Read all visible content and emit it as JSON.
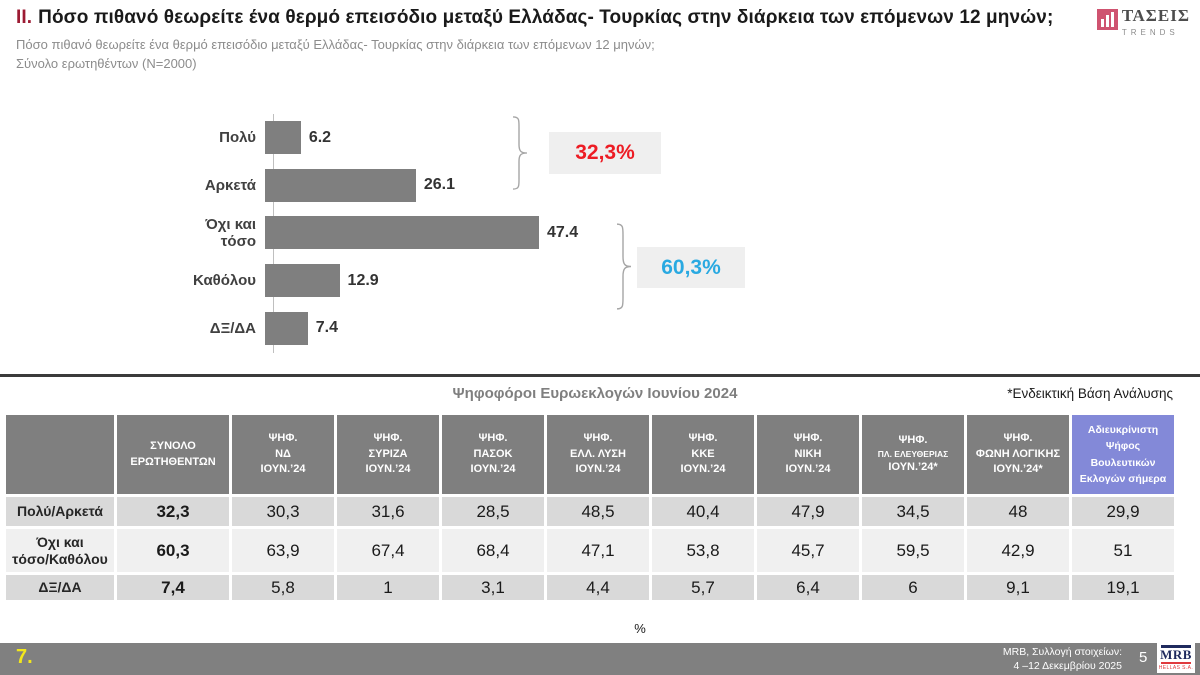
{
  "header": {
    "number": "ΙΙ.",
    "title": "Πόσο πιθανό θεωρείτε ένα θερμό επεισόδιο μεταξύ Ελλάδας- Τουρκίας στην διάρκεια των επόμενων 12 μηνών;",
    "subtitle_line1": "Πόσο πιθανό θεωρείτε ένα θερμό επεισόδιο μεταξύ Ελλάδας- Τουρκίας στην διάρκεια των επόμενων 12 μηνών;",
    "subtitle_line2": "Σύνολο ερωτηθέντων (N=2000)",
    "brand_logo": {
      "name": "ΤΑΣΕΙΣ",
      "sub": "TRENDS",
      "accent_color": "#cf5370"
    }
  },
  "chart_data": {
    "type": "bar",
    "orientation": "horizontal",
    "categories": [
      "Πολύ",
      "Αρκετά",
      "Όχι και\nτόσο",
      "Καθόλου",
      "ΔΞ/ΔΑ"
    ],
    "values": [
      6.2,
      26.1,
      47.4,
      12.9,
      7.4
    ],
    "bar_color": "#7f7f7f",
    "xlim": [
      0,
      50
    ],
    "grid": false,
    "annotations": [
      {
        "label": "32,3%",
        "color": "#ed1c24",
        "spans": [
          "Πολύ",
          "Αρκετά"
        ]
      },
      {
        "label": "60,3%",
        "color": "#29a9e1",
        "spans": [
          "Όχι και τόσο",
          "Καθόλου"
        ]
      }
    ]
  },
  "table": {
    "title": "Ψηφοφόροι Ευρωεκλογών Ιουνίου 2024",
    "note": "*Ενδεικτική Βάση Ανάλυσης",
    "columns": [
      {
        "lines": [
          "ΣΥΝΟΛΟ",
          "ΕΡΩΤΗΘΕΝΤΩΝ"
        ]
      },
      {
        "lines": [
          "ΨΗΦ.",
          "ΝΔ",
          "ΙΟΥΝ.’24"
        ]
      },
      {
        "lines": [
          "ΨΗΦ.",
          "ΣΥΡΙΖΑ",
          "ΙΟΥΝ.’24"
        ]
      },
      {
        "lines": [
          "ΨΗΦ.",
          "ΠΑΣΟΚ",
          "ΙΟΥΝ.’24"
        ]
      },
      {
        "lines": [
          "ΨΗΦ.",
          "ΕΛΛ. ΛΥΣΗ",
          "ΙΟΥΝ.’24"
        ]
      },
      {
        "lines": [
          "ΨΗΦ.",
          "ΚΚΕ",
          "ΙΟΥΝ.’24"
        ]
      },
      {
        "lines": [
          "ΨΗΦ.",
          "ΝΙΚΗ",
          "ΙΟΥΝ.’24"
        ]
      },
      {
        "lines": [
          "ΨΗΦ.",
          "ΠΛ. ΕΛΕΥΘΕΡΙΑΣ",
          "ΙΟΥΝ.’24*"
        ],
        "small_line": 1
      },
      {
        "lines": [
          "ΨΗΦ.",
          "ΦΩΝΗ ΛΟΓΙΚΗΣ",
          "ΙΟΥΝ.’24*"
        ]
      },
      {
        "lines": [
          "Αδιευκρίνιστη",
          "Ψήφος",
          "Βουλευτικών",
          "Εκλογών σήμερα"
        ],
        "highlight": true
      }
    ],
    "rows": [
      {
        "label": "Πολύ/Αρκετά",
        "values": [
          "32,3",
          "30,3",
          "31,6",
          "28,5",
          "48,5",
          "40,4",
          "47,9",
          "34,5",
          "48",
          "29,9"
        ]
      },
      {
        "label": "Όχι και\nτόσο/Καθόλου",
        "values": [
          "60,3",
          "63,9",
          "67,4",
          "68,4",
          "47,1",
          "53,8",
          "45,7",
          "59,5",
          "42,9",
          "51"
        ]
      },
      {
        "label": "ΔΞ/ΔΑ",
        "values": [
          "7,4",
          "5,8",
          "1",
          "3,1",
          "4,4",
          "5,7",
          "6,4",
          "6",
          "9,1",
          "19,1"
        ]
      }
    ],
    "unit": "%"
  },
  "footer": {
    "page_index": "7.",
    "source_line1": "MRB, Συλλογή στοιχείων:",
    "source_line2": "4 –12 Δεκεμβρίου 2025",
    "page_number": "5",
    "logo": {
      "name": "MRB",
      "sub": "HELLAS S.A."
    }
  }
}
